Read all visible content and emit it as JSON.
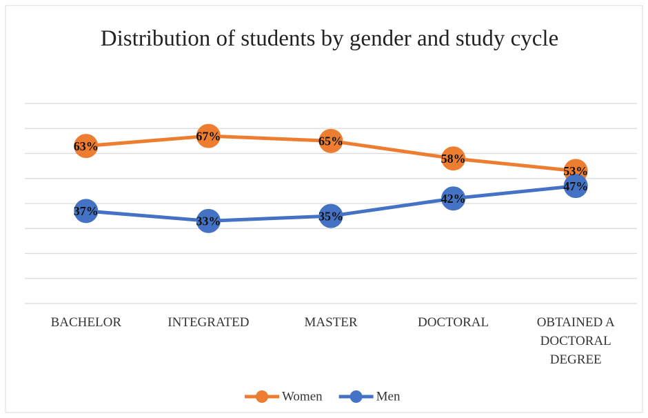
{
  "chart_data": {
    "type": "line",
    "title": "Distribution of students by gender and study cycle",
    "categories": [
      "BACHELOR",
      "INTEGRATED",
      "MASTER",
      "DOCTORAL",
      "OBTAINED A DOCTORAL DEGREE"
    ],
    "series": [
      {
        "name": "Women",
        "color": "#ED7D31",
        "values": [
          63,
          67,
          65,
          58,
          53
        ],
        "value_labels": [
          "63%",
          "67%",
          "65%",
          "58%",
          "53%"
        ]
      },
      {
        "name": "Men",
        "color": "#4472C4",
        "values": [
          37,
          33,
          35,
          42,
          47
        ],
        "value_labels": [
          "37%",
          "33%",
          "35%",
          "42%",
          "47%"
        ]
      }
    ],
    "ylim": [
      0,
      80
    ],
    "yticks": [
      0,
      10,
      20,
      30,
      40,
      50,
      60,
      70,
      80
    ],
    "grid": true,
    "legend": "bottom"
  }
}
